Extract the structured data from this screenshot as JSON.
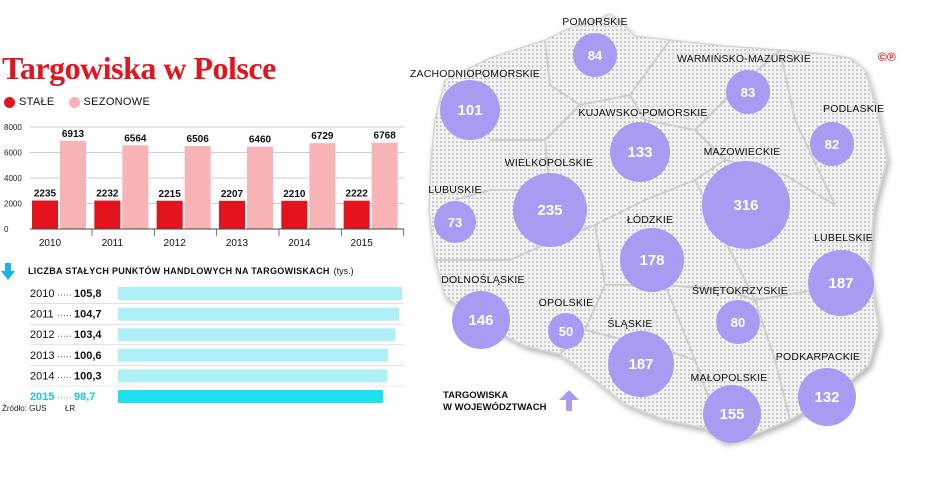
{
  "title": "Targowiska w Polsce",
  "legend": {
    "stale": "STAŁE",
    "sezonowe": "SEZONOWE"
  },
  "logo": "©℗",
  "colors": {
    "stale": "#e4141e",
    "sezonowe": "#f7b3b5",
    "hbar": "#aef0f5",
    "hbar_highlight": "#1de0ec",
    "bubble": "#a89cf2",
    "arrow": "#1eb3e6",
    "map_arrow": "#a89cf2"
  },
  "chart_data": [
    {
      "type": "bar",
      "categories": [
        "2010",
        "2011",
        "2012",
        "2013",
        "2014",
        "2015"
      ],
      "series": [
        {
          "name": "STAŁE",
          "values": [
            2235,
            2232,
            2215,
            2207,
            2210,
            2222
          ]
        },
        {
          "name": "SEZONOWE",
          "values": [
            6913,
            6564,
            6506,
            6460,
            6729,
            6768
          ]
        }
      ],
      "data_labels_stale": [
        "2235",
        "2232",
        "2215",
        "2207",
        "2210",
        "2222"
      ],
      "data_labels_sezonowe": [
        "6913",
        "6564",
        "6506",
        "6460",
        "6729",
        "6768"
      ],
      "ylim": [
        0,
        8000
      ],
      "yticks": [
        "0",
        "2000",
        "4000",
        "6000",
        "8000"
      ],
      "ytick_values": [
        0,
        2000,
        4000,
        6000,
        8000
      ],
      "grid": true
    },
    {
      "type": "bar",
      "orientation": "horizontal",
      "title": "Liczba stałych punktów handlowych na targowiskach",
      "unit": "(tys.)",
      "categories": [
        "2010",
        "2011",
        "2012",
        "2013",
        "2014",
        "2015"
      ],
      "values": [
        105.8,
        104.7,
        103.4,
        100.6,
        100.3,
        98.7
      ],
      "value_labels": [
        "105,8",
        "104,7",
        "103,4",
        "100,6",
        "100,3",
        "98,7"
      ],
      "highlight": "2015",
      "xlim": [
        0,
        105.8
      ]
    },
    {
      "type": "bubble-map",
      "title": "Targowiska w województwach",
      "regions": [
        {
          "name": "POMORSKIE",
          "value": 84
        },
        {
          "name": "WARMIŃSKO-MAZURSKIE",
          "value": 83
        },
        {
          "name": "ZACHODNIOPOMORSKIE",
          "value": 101
        },
        {
          "name": "KUJAWSKO-POMORSKIE",
          "value": 133
        },
        {
          "name": "PODLASKIE",
          "value": 82
        },
        {
          "name": "WIELKOPOLSKIE",
          "value": 235
        },
        {
          "name": "MAZOWIECKIE",
          "value": 316
        },
        {
          "name": "LUBUSKIE",
          "value": 73
        },
        {
          "name": "ŁÓDZKIE",
          "value": 178
        },
        {
          "name": "LUBELSKIE",
          "value": 187
        },
        {
          "name": "DOLNOŚLĄSKIE",
          "value": 146
        },
        {
          "name": "OPOLSKIE",
          "value": 50
        },
        {
          "name": "ŚWIĘTOKRZYSKIE",
          "value": 80
        },
        {
          "name": "ŚLĄSKIE",
          "value": 187
        },
        {
          "name": "PODKARPACKIE",
          "value": 132
        },
        {
          "name": "MAŁOPOLSKIE",
          "value": 155
        }
      ]
    }
  ],
  "source": "Źródło: GUS",
  "author": "ŁR"
}
